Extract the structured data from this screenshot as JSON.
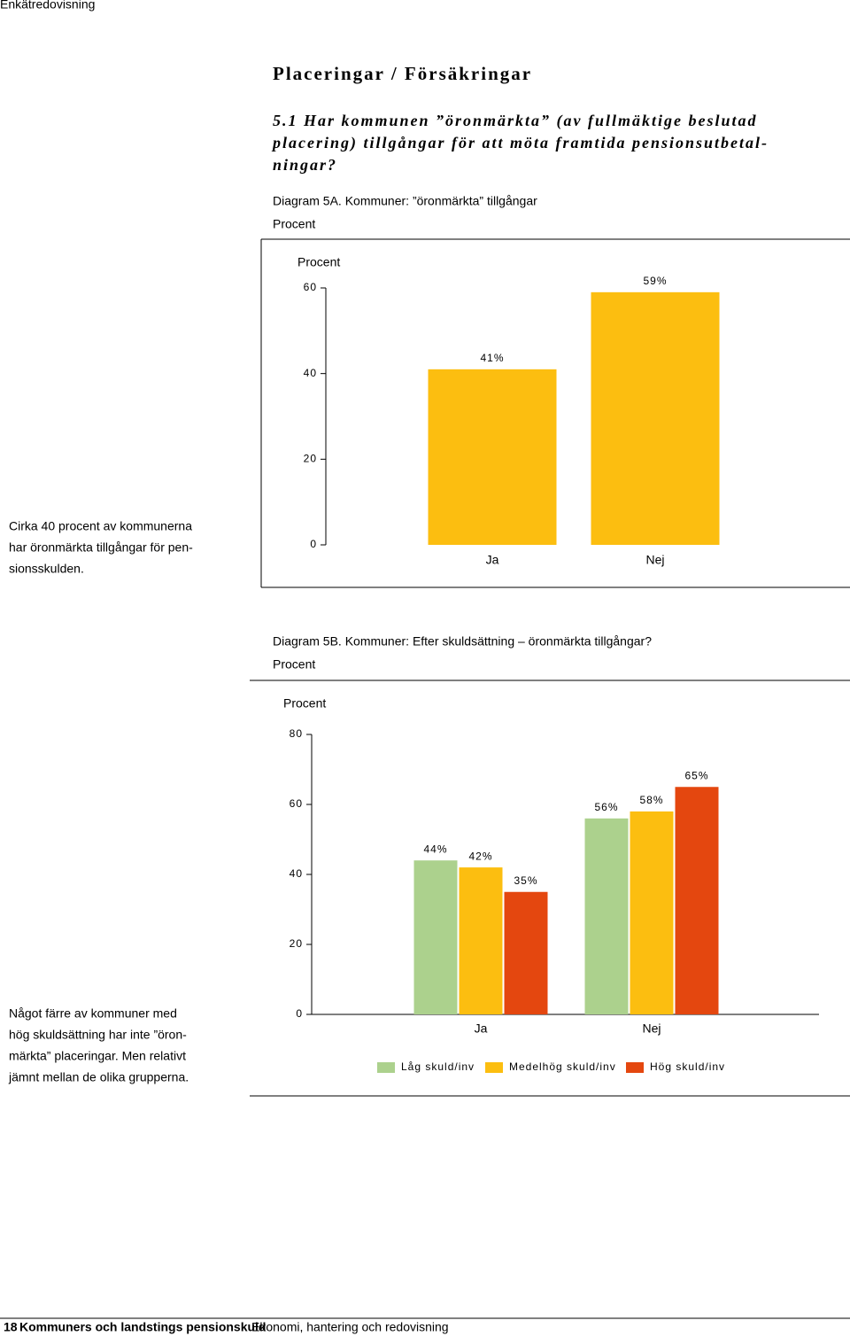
{
  "header": {
    "section": "Enkätredovisning"
  },
  "heading": "Placeringar / Försäkringar",
  "question": [
    "5.1 Har kommunen ”öronmärkta” (av fullmäktige beslutad",
    "placering) tillgångar för att möta framtida pensionsutbetal-",
    "ningar?"
  ],
  "notes": [
    [
      "Cirka 40 procent av kommunerna",
      "har öronmärkta tillgångar för pen-",
      "sionsskulden."
    ],
    [
      "Något färre av kommuner med",
      "hög skuldsättning har inte ”öron-",
      "märkta” placeringar. Men relativt",
      "jämnt mellan de olika grupperna."
    ]
  ],
  "chart_data": [
    {
      "type": "bar",
      "title": "Diagram 5A. Kommuner: ”öronmärkta” tillgångar",
      "subtitle": "Procent",
      "y_label": "Procent",
      "categories": [
        "Ja",
        "Nej"
      ],
      "series": [
        {
          "name": null,
          "color": "#fcbe10",
          "values": [
            41,
            59
          ],
          "value_labels": [
            "41%",
            "59%"
          ]
        }
      ],
      "ylim": [
        0,
        60
      ],
      "yticks": [
        0,
        20,
        40,
        60
      ]
    },
    {
      "type": "bar",
      "title": "Diagram 5B. Kommuner: Efter skuldsättning – öronmärkta tillgångar?",
      "subtitle": "Procent",
      "y_label": "Procent",
      "categories": [
        "Ja",
        "Nej"
      ],
      "series": [
        {
          "name": "Låg skuld/inv",
          "color": "#acd18d",
          "values": [
            44,
            56
          ],
          "value_labels": [
            "44%",
            "56%"
          ]
        },
        {
          "name": "Medelhög skuld/inv",
          "color": "#fcbe10",
          "values": [
            42,
            58
          ],
          "value_labels": [
            "42%",
            "58%"
          ]
        },
        {
          "name": "Hög skuld/inv",
          "color": "#e4470f",
          "values": [
            35,
            65
          ],
          "value_labels": [
            "35%",
            "65%"
          ]
        }
      ],
      "ylim": [
        0,
        80
      ],
      "yticks": [
        0,
        20,
        40,
        60,
        80
      ]
    }
  ],
  "footer": {
    "page": "18",
    "publication": "Kommuners och landstings pensionskuld",
    "subtitle": "Ekonomi, hantering och redovisning"
  }
}
